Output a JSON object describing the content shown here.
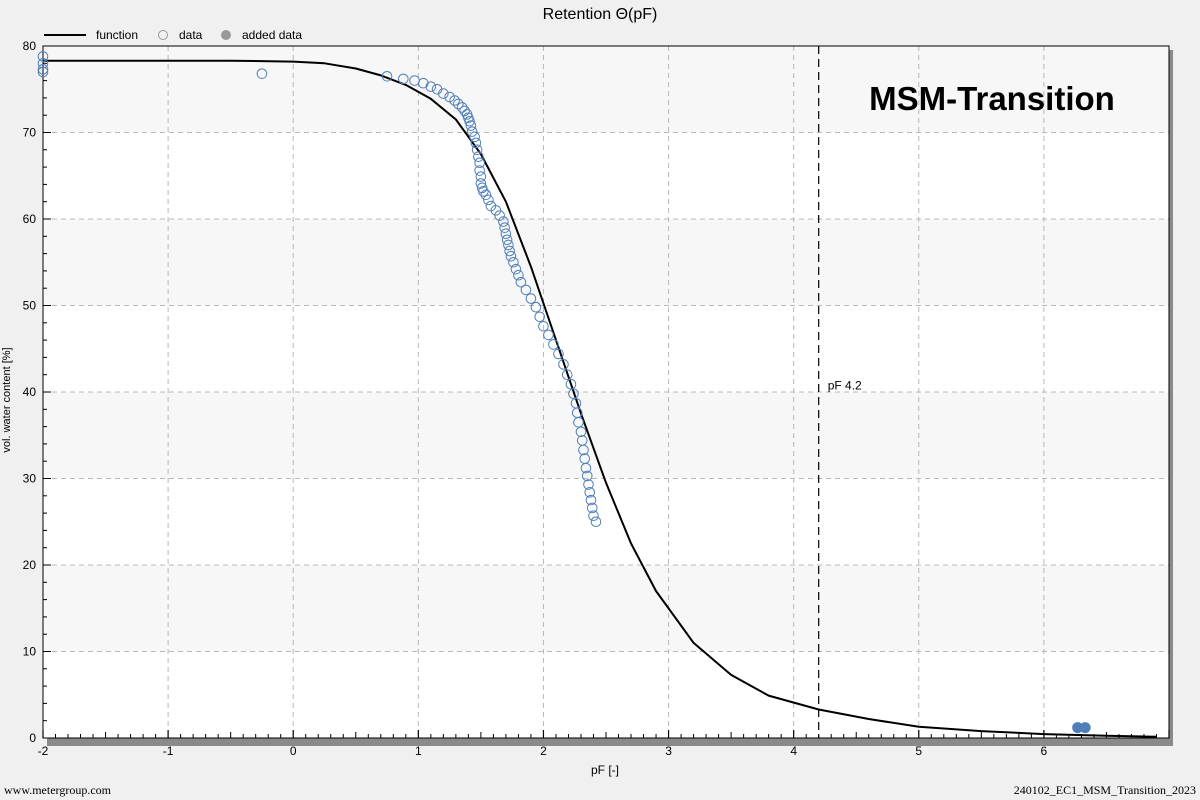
{
  "chart_data": {
    "type": "scatter",
    "title": "Retention Θ(pF)",
    "xlabel": "pF [-]",
    "ylabel": "vol. water content [%]",
    "xlim": [
      -2,
      7
    ],
    "ylim": [
      0,
      80
    ],
    "xticks": [
      "-2",
      "-1",
      "0",
      "1",
      "2",
      "3",
      "4",
      "5",
      "6"
    ],
    "yticks": [
      "0",
      "10",
      "20",
      "30",
      "40",
      "50",
      "60",
      "70",
      "80"
    ],
    "grid": true,
    "legend_position": "top-left",
    "legend": [
      {
        "label": "function",
        "marker": "line"
      },
      {
        "label": "data",
        "marker": "open-circle"
      },
      {
        "label": "added data",
        "marker": "filled-circle"
      }
    ],
    "annotation": {
      "label": "MSM-Transition"
    },
    "reference_line": {
      "x": 4.2,
      "label": "pF 4.2"
    },
    "colors": {
      "function": "#000000",
      "data": "#4f7fb8",
      "added_data": "#4f7fb8"
    },
    "series": [
      {
        "name": "function",
        "style": "line",
        "x": [
          -2.0,
          -1.0,
          -0.5,
          0.0,
          0.25,
          0.5,
          0.7,
          0.9,
          1.1,
          1.3,
          1.5,
          1.7,
          1.9,
          2.1,
          2.3,
          2.5,
          2.7,
          2.9,
          3.2,
          3.5,
          3.8,
          4.2,
          4.6,
          5.0,
          5.5,
          6.0,
          6.5,
          6.9
        ],
        "y": [
          78.3,
          78.3,
          78.3,
          78.2,
          78.0,
          77.4,
          76.6,
          75.5,
          73.9,
          71.5,
          67.5,
          62.0,
          54.5,
          46.0,
          37.5,
          29.5,
          22.5,
          17.0,
          11.0,
          7.3,
          4.9,
          3.3,
          2.2,
          1.3,
          0.8,
          0.45,
          0.25,
          0.15
        ]
      },
      {
        "name": "data",
        "style": "open-circle",
        "x": [
          -2.0,
          -2.0,
          -2.0,
          -2.0,
          -0.25,
          0.75,
          0.88,
          0.97,
          1.04,
          1.1,
          1.15,
          1.2,
          1.25,
          1.29,
          1.32,
          1.35,
          1.37,
          1.39,
          1.4,
          1.41,
          1.42,
          1.43,
          1.45,
          1.46,
          1.47,
          1.48,
          1.49,
          1.49,
          1.5,
          1.5,
          1.51,
          1.52,
          1.54,
          1.56,
          1.58,
          1.62,
          1.65,
          1.68,
          1.69,
          1.7,
          1.71,
          1.72,
          1.73,
          1.74,
          1.76,
          1.78,
          1.8,
          1.82,
          1.86,
          1.9,
          1.94,
          1.97,
          2.0,
          2.04,
          2.08,
          2.12,
          2.16,
          2.19,
          2.22,
          2.24,
          2.26,
          2.27,
          2.28,
          2.3,
          2.31,
          2.32,
          2.33,
          2.34,
          2.35,
          2.36,
          2.37,
          2.38,
          2.39,
          2.4,
          2.42
        ],
        "y": [
          78.8,
          78.0,
          77.3,
          77.0,
          76.8,
          76.5,
          76.2,
          76.0,
          75.7,
          75.3,
          75.0,
          74.5,
          74.1,
          73.7,
          73.3,
          72.9,
          72.5,
          72.1,
          71.7,
          71.3,
          70.8,
          70.1,
          69.5,
          68.8,
          68.0,
          67.2,
          66.5,
          65.6,
          64.9,
          64.1,
          63.6,
          63.2,
          62.8,
          62.2,
          61.5,
          61.0,
          60.4,
          59.7,
          59.0,
          58.3,
          57.6,
          57.0,
          56.3,
          55.7,
          55.0,
          54.2,
          53.5,
          52.7,
          51.8,
          50.8,
          49.8,
          48.7,
          47.6,
          46.6,
          45.5,
          44.4,
          43.2,
          42.0,
          40.9,
          39.8,
          38.7,
          37.6,
          36.5,
          35.4,
          34.4,
          33.3,
          32.3,
          31.2,
          30.3,
          29.3,
          28.4,
          27.5,
          26.6,
          25.7,
          25.0
        ]
      },
      {
        "name": "added data",
        "style": "filled-circle",
        "x": [
          6.27,
          6.33
        ],
        "y": [
          1.2,
          1.2
        ]
      }
    ]
  },
  "footer": {
    "left": "www.metergroup.com",
    "right": "240102_EC1_MSM_Transition_2023"
  }
}
